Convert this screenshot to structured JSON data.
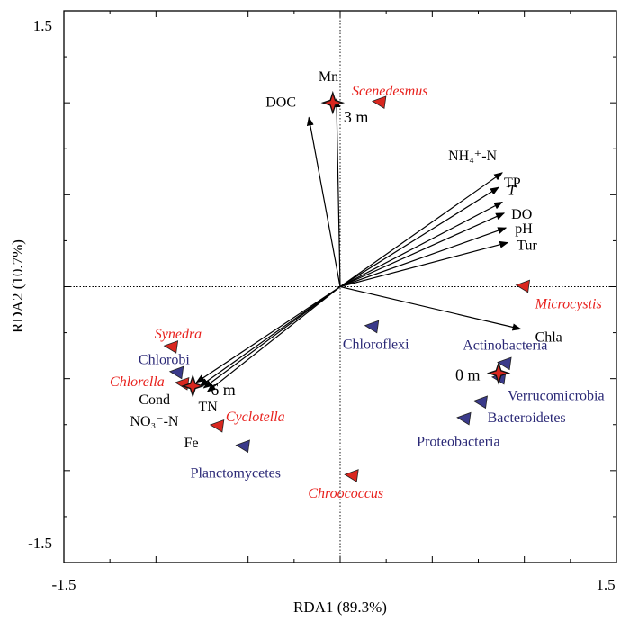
{
  "chart_data": {
    "type": "scatter",
    "subtype": "rda-biplot",
    "xlabel": "RDA1 (89.3%)",
    "ylabel": "RDA2 (10.7%)",
    "xlim": [
      -1.5,
      1.5
    ],
    "ylim": [
      -1.5,
      1.5
    ],
    "x_tick_labels": [
      "-1.5",
      "1.5"
    ],
    "y_tick_labels": [
      "1.5",
      "-1.5"
    ],
    "zero_lines": true,
    "colors": {
      "axes": "#000000",
      "arrow": "#000000",
      "algae_label": "#e8211d",
      "algae_marker": "#d9271f",
      "bacteria_label": "#2a2876",
      "bacteria_marker": "#3a3a8a",
      "sample_marker": "#d9271f",
      "env_label": "#000000"
    },
    "environmental_vectors": [
      {
        "label": "DOC",
        "x": -0.17,
        "y": 0.92
      },
      {
        "label": "Mn",
        "x": -0.02,
        "y": 1.02
      },
      {
        "label": "NH₄⁺-N",
        "x": 0.88,
        "y": 0.62
      },
      {
        "label": "TP",
        "x": 0.86,
        "y": 0.54
      },
      {
        "label": "T",
        "x": 0.88,
        "y": 0.46
      },
      {
        "label": "DO",
        "x": 0.89,
        "y": 0.4
      },
      {
        "label": "pH",
        "x": 0.9,
        "y": 0.32
      },
      {
        "label": "Tur",
        "x": 0.91,
        "y": 0.24
      },
      {
        "label": "Chla",
        "x": 0.98,
        "y": -0.23
      },
      {
        "label": "Cond",
        "x": -0.78,
        "y": -0.52
      },
      {
        "label": "NO₃⁻-N",
        "x": -0.76,
        "y": -0.54
      },
      {
        "label": "TN",
        "x": -0.74,
        "y": -0.55
      },
      {
        "label": "Fe",
        "x": -0.72,
        "y": -0.57
      }
    ],
    "algae": [
      {
        "label": "Scenedesmus",
        "x": 0.22,
        "y": 1.0
      },
      {
        "label": "Microcystis",
        "x": 1.0,
        "y": 0.0
      },
      {
        "label": "Synedra",
        "x": -0.91,
        "y": -0.33
      },
      {
        "label": "Chlorella",
        "x": -0.85,
        "y": -0.53
      },
      {
        "label": "Cyclotella",
        "x": -0.66,
        "y": -0.76
      },
      {
        "label": "Chroococcus",
        "x": 0.07,
        "y": -1.03
      }
    ],
    "bacteria": [
      {
        "label": "Chlorobi",
        "x": -0.88,
        "y": -0.47
      },
      {
        "label": "Chloroflexi",
        "x": 0.18,
        "y": -0.22
      },
      {
        "label": "Actinobacteria",
        "x": 0.9,
        "y": -0.42
      },
      {
        "label": "Verrucomicrobia",
        "x": 0.87,
        "y": -0.5
      },
      {
        "label": "Bacteroidetes",
        "x": 0.77,
        "y": -0.63
      },
      {
        "label": "Proteobacteria",
        "x": 0.68,
        "y": -0.72
      },
      {
        "label": "Planctomycetes",
        "x": -0.52,
        "y": -0.87
      }
    ],
    "samples": [
      {
        "label": "3 m",
        "x": -0.04,
        "y": 1.0
      },
      {
        "label": "6 m",
        "x": -0.8,
        "y": -0.54
      },
      {
        "label": "0 m",
        "x": 0.86,
        "y": -0.47
      }
    ]
  }
}
